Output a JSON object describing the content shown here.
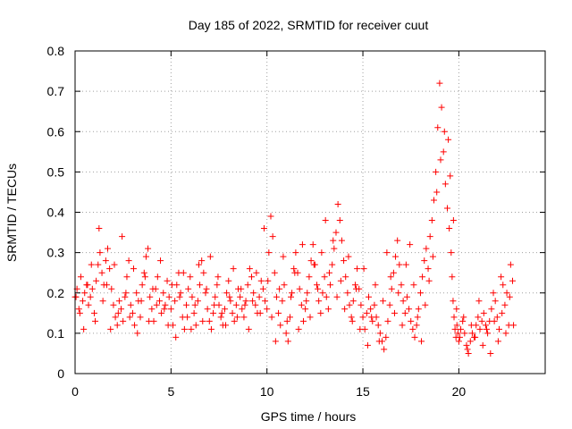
{
  "chart_data": {
    "type": "scatter",
    "title": "Day 185 of 2022, SRMTID for receiver cuut",
    "xlabel": "GPS time / hours",
    "ylabel": "SRMTID / TECUs",
    "xlim": [
      0,
      24.5
    ],
    "ylim": [
      0,
      0.8
    ],
    "x_ticks": [
      0,
      5,
      10,
      15,
      20
    ],
    "x_tick_labels": [
      "0",
      "5",
      "10",
      "15",
      "20"
    ],
    "y_ticks": [
      0,
      0.1,
      0.2,
      0.3,
      0.4,
      0.5,
      0.6,
      0.7,
      0.8
    ],
    "y_tick_labels": [
      "0",
      "0.1",
      "0.2",
      "0.3",
      "0.4",
      "0.5",
      "0.6",
      "0.7",
      "0.8"
    ],
    "grid": true,
    "marker": "+",
    "marker_color": "#ff0000",
    "series": [
      {
        "name": "SRMTID",
        "x": [
          0.0,
          0.1,
          0.2,
          0.3,
          0.4,
          0.5,
          0.6,
          0.7,
          0.8,
          0.9,
          1.0,
          1.1,
          1.2,
          1.3,
          1.4,
          1.5,
          1.6,
          1.7,
          1.8,
          1.9,
          2.0,
          2.1,
          2.2,
          2.3,
          2.4,
          2.5,
          2.6,
          2.7,
          2.8,
          2.9,
          3.0,
          3.1,
          3.2,
          3.3,
          3.4,
          3.5,
          3.6,
          3.7,
          3.8,
          3.9,
          4.0,
          4.1,
          4.2,
          4.3,
          4.4,
          4.5,
          4.6,
          4.7,
          4.8,
          4.9,
          5.0,
          5.1,
          5.2,
          5.3,
          5.4,
          5.5,
          5.6,
          5.7,
          5.8,
          5.9,
          6.0,
          6.1,
          6.2,
          6.3,
          6.4,
          6.5,
          6.6,
          6.7,
          6.8,
          6.9,
          7.0,
          7.1,
          7.2,
          7.3,
          7.4,
          7.5,
          7.6,
          7.7,
          7.8,
          7.9,
          8.0,
          8.1,
          8.2,
          8.3,
          8.4,
          8.5,
          8.6,
          8.7,
          8.8,
          8.9,
          9.0,
          9.1,
          9.2,
          9.3,
          9.4,
          9.5,
          9.6,
          9.7,
          9.8,
          9.9,
          10.0,
          10.1,
          10.2,
          10.3,
          10.4,
          10.5,
          10.6,
          10.7,
          10.8,
          10.9,
          11.0,
          11.1,
          11.2,
          11.3,
          11.4,
          11.5,
          11.6,
          11.7,
          11.8,
          11.9,
          12.0,
          12.1,
          12.2,
          12.3,
          12.4,
          12.5,
          12.6,
          12.7,
          12.8,
          12.9,
          13.0,
          13.1,
          13.2,
          13.3,
          13.4,
          13.5,
          13.6,
          13.7,
          13.8,
          13.9,
          14.0,
          14.1,
          14.2,
          14.3,
          14.4,
          14.5,
          14.6,
          14.7,
          14.8,
          14.9,
          15.0,
          15.1,
          15.2,
          15.3,
          15.4,
          15.5,
          15.6,
          15.7,
          15.8,
          15.9,
          16.0,
          16.1,
          16.2,
          16.3,
          16.4,
          16.5,
          16.6,
          16.7,
          16.8,
          16.9,
          17.0,
          17.1,
          17.2,
          17.3,
          17.4,
          17.5,
          17.6,
          17.7,
          17.8,
          17.9,
          18.0,
          18.1,
          18.2,
          18.3,
          18.4,
          18.5,
          18.6,
          18.7,
          18.8,
          18.9,
          19.0,
          19.1,
          19.2,
          19.3,
          19.4,
          19.5,
          19.6,
          19.65,
          19.7,
          19.75,
          19.8,
          19.85,
          19.9,
          19.95,
          20.0,
          20.1,
          20.2,
          20.3,
          20.4,
          20.5,
          20.6,
          20.7,
          20.8,
          20.9,
          21.0,
          21.1,
          21.2,
          21.3,
          21.4,
          21.5,
          21.6,
          21.7,
          21.8,
          21.9,
          22.0,
          22.1,
          22.2,
          22.3,
          22.4,
          22.5,
          22.6,
          22.7,
          22.8,
          0.05,
          0.25,
          0.45,
          0.65,
          0.85,
          1.05,
          1.25,
          1.45,
          1.65,
          1.85,
          2.05,
          2.25,
          2.45,
          2.65,
          2.85,
          3.05,
          3.25,
          3.45,
          3.65,
          3.85,
          4.05,
          4.25,
          4.45,
          4.65,
          4.85,
          5.05,
          5.25,
          5.45,
          5.65,
          5.85,
          6.05,
          6.25,
          6.45,
          6.65,
          6.85,
          7.05,
          7.25,
          7.45,
          7.65,
          7.85,
          8.05,
          8.25,
          8.45,
          8.65,
          8.85,
          9.05,
          9.25,
          9.45,
          9.65,
          9.85,
          10.05,
          10.25,
          10.45,
          10.65,
          10.85,
          11.05,
          11.25,
          11.45,
          11.65,
          11.85,
          12.05,
          12.25,
          12.45,
          12.65,
          12.85,
          13.05,
          13.25,
          13.45,
          13.65,
          13.85,
          14.05,
          14.25,
          14.45,
          14.65,
          14.85,
          15.05,
          15.25,
          15.45,
          15.65,
          15.85,
          16.05,
          16.25,
          16.45,
          16.65,
          16.85,
          17.05,
          17.25,
          17.45,
          17.65,
          17.85,
          18.05,
          18.25,
          18.45,
          18.65,
          18.85,
          19.05,
          19.25,
          19.45,
          19.55,
          19.72,
          19.88,
          20.05,
          20.25,
          20.45,
          20.65,
          20.85,
          21.05,
          21.25,
          21.45,
          21.65,
          21.85,
          22.05,
          22.25,
          22.45,
          22.65,
          22.85
        ],
        "y": [
          0.19,
          0.21,
          0.16,
          0.24,
          0.18,
          0.2,
          0.22,
          0.17,
          0.19,
          0.21,
          0.15,
          0.23,
          0.27,
          0.3,
          0.25,
          0.22,
          0.28,
          0.31,
          0.26,
          0.21,
          0.17,
          0.14,
          0.12,
          0.18,
          0.16,
          0.13,
          0.19,
          0.24,
          0.28,
          0.17,
          0.15,
          0.12,
          0.2,
          0.18,
          0.14,
          0.22,
          0.25,
          0.29,
          0.31,
          0.19,
          0.16,
          0.13,
          0.21,
          0.24,
          0.18,
          0.15,
          0.2,
          0.17,
          0.23,
          0.19,
          0.16,
          0.12,
          0.18,
          0.22,
          0.25,
          0.2,
          0.14,
          0.11,
          0.17,
          0.21,
          0.24,
          0.19,
          0.15,
          0.12,
          0.18,
          0.22,
          0.28,
          0.25,
          0.2,
          0.16,
          0.13,
          0.11,
          0.15,
          0.19,
          0.22,
          0.17,
          0.14,
          0.12,
          0.16,
          0.2,
          0.23,
          0.18,
          0.15,
          0.13,
          0.17,
          0.21,
          0.19,
          0.16,
          0.14,
          0.18,
          0.22,
          0.26,
          0.24,
          0.2,
          0.17,
          0.15,
          0.19,
          0.23,
          0.21,
          0.18,
          0.16,
          0.3,
          0.39,
          0.34,
          0.25,
          0.19,
          0.15,
          0.12,
          0.18,
          0.22,
          0.1,
          0.08,
          0.14,
          0.2,
          0.26,
          0.3,
          0.25,
          0.21,
          0.17,
          0.13,
          0.16,
          0.2,
          0.24,
          0.28,
          0.32,
          0.27,
          0.22,
          0.18,
          0.15,
          0.2,
          0.24,
          0.19,
          0.16,
          0.22,
          0.27,
          0.31,
          0.35,
          0.42,
          0.38,
          0.33,
          0.28,
          0.24,
          0.2,
          0.17,
          0.14,
          0.18,
          0.22,
          0.26,
          0.21,
          0.17,
          0.14,
          0.11,
          0.15,
          0.19,
          0.16,
          0.13,
          0.17,
          0.14,
          0.12,
          0.1,
          0.08,
          0.06,
          0.09,
          0.13,
          0.17,
          0.21,
          0.25,
          0.29,
          0.33,
          0.27,
          0.22,
          0.18,
          0.15,
          0.19,
          0.16,
          0.13,
          0.11,
          0.09,
          0.12,
          0.16,
          0.2,
          0.24,
          0.28,
          0.31,
          0.26,
          0.34,
          0.38,
          0.43,
          0.5,
          0.61,
          0.72,
          0.66,
          0.55,
          0.47,
          0.41,
          0.36,
          0.3,
          0.24,
          0.18,
          0.14,
          0.11,
          0.09,
          0.12,
          0.1,
          0.08,
          0.11,
          0.13,
          0.1,
          0.07,
          0.05,
          0.08,
          0.1,
          0.09,
          0.12,
          0.14,
          0.11,
          0.13,
          0.15,
          0.12,
          0.1,
          0.13,
          0.16,
          0.2,
          0.18,
          0.14,
          0.11,
          0.24,
          0.22,
          0.17,
          0.2,
          0.12,
          0.27,
          0.23,
          0.19,
          0.15,
          0.11,
          0.22,
          0.27,
          0.13,
          0.36,
          0.18,
          0.22,
          0.11,
          0.27,
          0.15,
          0.34,
          0.2,
          0.14,
          0.26,
          0.1,
          0.18,
          0.24,
          0.13,
          0.21,
          0.17,
          0.28,
          0.16,
          0.12,
          0.22,
          0.09,
          0.19,
          0.25,
          0.14,
          0.11,
          0.17,
          0.27,
          0.13,
          0.21,
          0.29,
          0.17,
          0.24,
          0.15,
          0.12,
          0.19,
          0.26,
          0.14,
          0.21,
          0.17,
          0.11,
          0.18,
          0.25,
          0.15,
          0.36,
          0.23,
          0.14,
          0.08,
          0.21,
          0.29,
          0.13,
          0.19,
          0.25,
          0.11,
          0.32,
          0.18,
          0.14,
          0.27,
          0.21,
          0.3,
          0.38,
          0.25,
          0.33,
          0.19,
          0.23,
          0.16,
          0.29,
          0.13,
          0.21,
          0.11,
          0.26,
          0.07,
          0.14,
          0.22,
          0.08,
          0.18,
          0.3,
          0.24,
          0.15,
          0.2,
          0.12,
          0.27,
          0.32,
          0.22,
          0.14,
          0.08,
          0.17,
          0.23,
          0.29,
          0.45,
          0.53,
          0.6,
          0.58,
          0.49,
          0.38,
          0.16,
          0.09,
          0.14,
          0.06,
          0.12,
          0.09,
          0.18,
          0.07,
          0.11,
          0.05,
          0.13,
          0.08,
          0.15,
          0.1,
          0.19,
          0.12
        ]
      }
    ]
  }
}
